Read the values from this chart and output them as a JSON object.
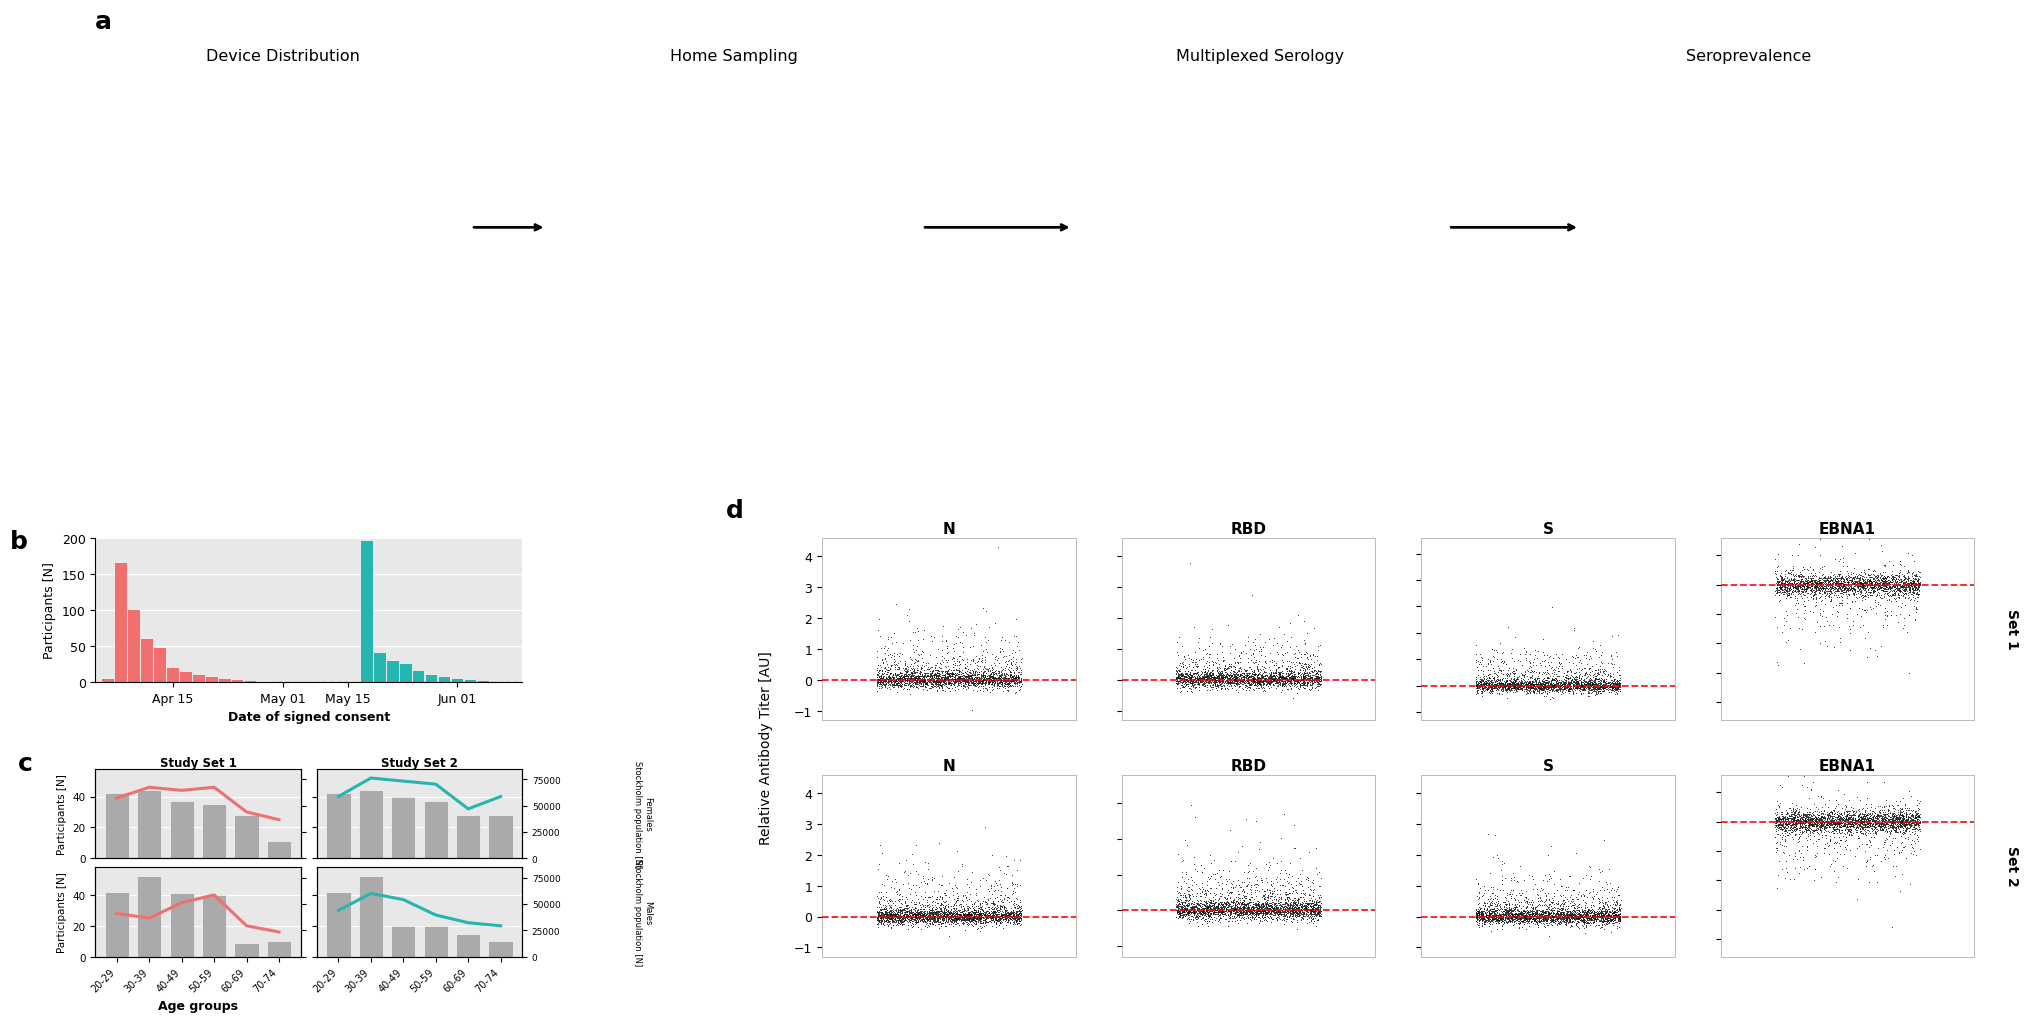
{
  "fig_bg": "#FFFFFF",
  "label_fontsize": 18,
  "panel_a": {
    "titles": [
      "Device Distribution",
      "Home Sampling",
      "Multiplexed Serology",
      "Seroprevalence"
    ],
    "bg": "#FFFFFF"
  },
  "panel_b": {
    "xlabel": "Date of signed consent",
    "ylabel": "Participants [N]",
    "set1_color": "#F07070",
    "set2_color": "#26B5B0",
    "bg_color": "#E8E8E8",
    "ylim": [
      0,
      200
    ],
    "yticks": [
      0,
      50,
      100,
      150,
      200
    ],
    "set1_x": [
      1,
      2,
      3,
      4,
      5,
      6,
      7,
      8,
      9,
      10,
      11,
      12,
      13
    ],
    "set1_h": [
      5,
      165,
      100,
      60,
      47,
      20,
      14,
      10,
      7,
      5,
      3,
      2,
      1
    ],
    "set2_x": [
      21,
      22,
      23,
      24,
      25,
      26,
      27,
      28,
      29,
      30
    ],
    "set2_h": [
      195,
      40,
      30,
      25,
      15,
      10,
      8,
      5,
      3,
      2
    ],
    "xlim": [
      0,
      33
    ],
    "xtick_pos": [
      6.0,
      14.5,
      19.5,
      28.0
    ],
    "xtick_labels": [
      "Apr 15",
      "May 01",
      "May 15",
      "Jun 01"
    ]
  },
  "panel_c": {
    "age_groups": [
      "20-29",
      "30-39",
      "40-49",
      "50-59",
      "60-69",
      "70-74"
    ],
    "bar_color": "#AAAAAA",
    "set1_color": "#F07070",
    "set2_color": "#26B5B0",
    "bg_color": "#E8E8E8",
    "female_bars_s1": [
      42,
      44,
      37,
      35,
      28,
      11
    ],
    "female_bars_s2": [
      42,
      44,
      40,
      37,
      28,
      28
    ],
    "male_bars_s1": [
      42,
      52,
      41,
      40,
      9,
      10
    ],
    "male_bars_s2": [
      42,
      52,
      20,
      20,
      15,
      10
    ],
    "female_line_s1": [
      39,
      46,
      44,
      46,
      30,
      25
    ],
    "female_line_s2": [
      40,
      52,
      50,
      48,
      32,
      40
    ],
    "male_line_s1": [
      28,
      25,
      35,
      40,
      20,
      16
    ],
    "male_line_s2": [
      30,
      41,
      37,
      27,
      22,
      20
    ],
    "ylabel": "Participants [N]",
    "ylabel_right_females": "Stockholm population [N]",
    "ylabel_right_males": "Stockholm population [N]",
    "xlabel": "Age groups",
    "yticks": [
      0,
      20,
      40
    ],
    "ylim": [
      0,
      58
    ],
    "right_yticks": [
      0,
      25000,
      50000,
      75000
    ],
    "right_ylim": [
      0,
      85000
    ],
    "right_tick_labels": [
      "0",
      "25000",
      "50000",
      "75000"
    ]
  },
  "panel_d": {
    "antigens": [
      "N",
      "RBD",
      "S",
      "EBNA1"
    ],
    "set_labels": [
      "Set 1",
      "Set 2"
    ],
    "ylabel": "Relative Antibody Titer [AU]",
    "dot_color": "#111111",
    "line_color": "#FF0000",
    "ylims": [
      [
        [
          -1.3,
          4.6
        ],
        [
          -1.3,
          4.6
        ],
        [
          -1.3,
          5.6
        ],
        [
          -4.6,
          1.6
        ]
      ],
      [
        [
          -1.3,
          4.6
        ],
        [
          -1.3,
          3.8
        ],
        [
          -1.3,
          4.6
        ],
        [
          -4.6,
          1.6
        ]
      ]
    ],
    "yticks": [
      [
        [
          -1,
          0,
          1,
          2,
          3,
          4
        ],
        [
          -1,
          0,
          1,
          2,
          3,
          4
        ],
        [
          -1,
          0,
          1,
          2,
          3,
          4,
          5
        ],
        [
          -4,
          -3,
          -2,
          -1,
          0,
          1
        ]
      ],
      [
        [
          -1,
          0,
          1,
          2,
          3,
          4
        ],
        [
          -1,
          0,
          1,
          2,
          3
        ],
        [
          -1,
          0,
          1,
          2,
          3,
          4
        ],
        [
          -4,
          -3,
          -2,
          -1,
          0,
          1
        ]
      ]
    ],
    "n_pts": [
      2500,
      2800
    ]
  }
}
